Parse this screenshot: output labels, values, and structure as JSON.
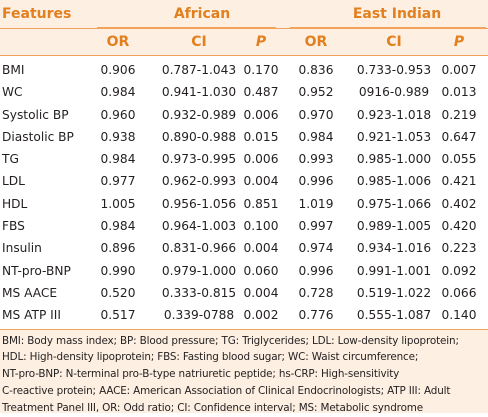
{
  "table": {
    "header": {
      "features": "Features",
      "group_african": "African",
      "group_east_indian": "East Indian",
      "columns": [
        "OR",
        "CI",
        "P",
        "OR",
        "CI",
        "P"
      ]
    },
    "rows": [
      {
        "feature": "BMI",
        "a_or": "0.906",
        "a_ci": "0.787-1.043",
        "a_p": "0.170",
        "e_or": "0.836",
        "e_ci": "0.733-0.953",
        "e_p": "0.007"
      },
      {
        "feature": "WC",
        "a_or": "0.984",
        "a_ci": "0.941-1.030",
        "a_p": "0.487",
        "e_or": "0.952",
        "e_ci": "0916-0.989",
        "e_p": "0.013"
      },
      {
        "feature": "Systolic BP",
        "a_or": "0.960",
        "a_ci": "0.932-0.989",
        "a_p": "0.006",
        "e_or": "0.970",
        "e_ci": "0.923-1.018",
        "e_p": "0.219"
      },
      {
        "feature": "Diastolic BP",
        "a_or": "0.938",
        "a_ci": "0.890-0.988",
        "a_p": "0.015",
        "e_or": "0.984",
        "e_ci": "0.921-1.053",
        "e_p": "0.647"
      },
      {
        "feature": "TG",
        "a_or": "0.984",
        "a_ci": "0.973-0.995",
        "a_p": "0.006",
        "e_or": "0.993",
        "e_ci": "0.985-1.000",
        "e_p": "0.055"
      },
      {
        "feature": "LDL",
        "a_or": "0.977",
        "a_ci": "0.962-0.993",
        "a_p": "0.004",
        "e_or": "0.996",
        "e_ci": "0.985-1.006",
        "e_p": "0.421"
      },
      {
        "feature": "HDL",
        "a_or": "1.005",
        "a_ci": "0.956-1.056",
        "a_p": "0.851",
        "e_or": "1.019",
        "e_ci": "0.975-1.066",
        "e_p": "0.402"
      },
      {
        "feature": "FBS",
        "a_or": "0.984",
        "a_ci": "0.964-1.003",
        "a_p": "0.100",
        "e_or": "0.997",
        "e_ci": "0.989-1.005",
        "e_p": "0.420"
      },
      {
        "feature": "Insulin",
        "a_or": "0.896",
        "a_ci": "0.831-0.966",
        "a_p": "0.004",
        "e_or": "0.974",
        "e_ci": "0.934-1.016",
        "e_p": "0.223"
      },
      {
        "feature": "NT-pro-BNP",
        "a_or": "0.990",
        "a_ci": "0.979-1.000",
        "a_p": "0.060",
        "e_or": "0.996",
        "e_ci": "0.991-1.001",
        "e_p": "0.092"
      },
      {
        "feature": "MS AACE",
        "a_or": "0.520",
        "a_ci": "0.333-0.815",
        "a_p": "0.004",
        "e_or": "0.728",
        "e_ci": "0.519-1.022",
        "e_p": "0.066"
      },
      {
        "feature": "MS ATP III",
        "a_or": "0.517",
        "a_ci": "0.339-0788",
        "a_p": "0.002",
        "e_or": "0.776",
        "e_ci": "0.555-1.087",
        "e_p": "0.140"
      }
    ],
    "footnote_lines": [
      "BMI: Body mass index; BP: Blood pressure; TG: Triglycerides; LDL: Low-density lipoprotein;",
      "HDL: High-density lipoprotein; FBS: Fasting blood sugar; WC: Waist circumference;",
      "NT-pro-BNP: N-terminal pro-B-type natriuretic peptide; hs-CRP: High-sensitivity",
      "C-reactive protein; AACE: American Association of Clinical Endocrinologists; ATP III: Adult",
      "Treatment Panel III, OR: Odd ratio; CI: Confidence interval; MS: Metabolic syndrome"
    ]
  },
  "colors": {
    "header_text": "#e27f1e",
    "band_fill": "#fdf0e2",
    "rule": "#f2a25b",
    "body_text": "#231f20"
  }
}
